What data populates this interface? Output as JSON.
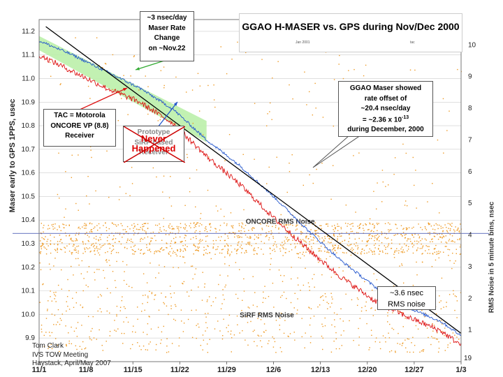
{
  "chart_data": {
    "type": "line",
    "title": "GGAO H-MASER vs. GPS during Nov/Dec 2000",
    "title_box_fineprint": [
      "Jan 2001",
      "tac"
    ],
    "xlabel": "",
    "ylabel": "Maser early to GPS 1PPS, usec",
    "y2label": "RMS Noise in 5 minute bins, nsec",
    "x_tick_labels": [
      "11/1",
      "11/8",
      "11/15",
      "11/22",
      "11/29",
      "12/6",
      "12/13",
      "12/20",
      "12/27",
      "1/3"
    ],
    "x_tick_days": [
      0,
      7,
      14,
      21,
      28,
      35,
      42,
      49,
      56,
      63
    ],
    "xlim": [
      0,
      63
    ],
    "ylim": [
      9.8,
      11.25
    ],
    "y_tick_values": [
      9.9,
      10.0,
      10.1,
      10.2,
      10.3,
      10.4,
      10.5,
      10.6,
      10.7,
      10.8,
      10.9,
      11.0,
      11.1,
      11.2
    ],
    "y_tick_labels": [
      "9.9",
      "10.0",
      "10.1",
      "10.2",
      "10.3",
      "10.4",
      "10.5",
      "10.6",
      "10.7",
      "10.8",
      "10.9",
      "11.0",
      "11.1",
      "11.2"
    ],
    "y2lim": [
      0,
      10.8
    ],
    "y2_tick_values": [
      1,
      2,
      3,
      4,
      5,
      6,
      7,
      8,
      9,
      10
    ],
    "y2_tick_labels": [
      "1",
      "2",
      "3",
      "4",
      "5",
      "6",
      "7",
      "8",
      "9",
      "10"
    ],
    "series": [
      {
        "name": "ONCORE VP (blue)",
        "color": "#2255cc",
        "x": [
          0,
          5,
          10,
          15,
          20,
          25,
          30,
          35,
          40,
          45,
          50,
          55,
          60,
          63
        ],
        "values": [
          11.16,
          11.1,
          11.03,
          10.96,
          10.87,
          10.74,
          10.63,
          10.5,
          10.36,
          10.23,
          10.12,
          10.03,
          9.97,
          9.91
        ]
      },
      {
        "name": "SiRF (red)",
        "color": "#dd1111",
        "x": [
          0,
          5,
          10,
          15,
          20,
          25,
          30,
          35,
          40,
          45,
          50,
          55,
          60,
          63
        ],
        "values": [
          11.1,
          11.03,
          10.96,
          10.9,
          10.81,
          10.67,
          10.55,
          10.41,
          10.28,
          10.16,
          10.06,
          9.99,
          9.93,
          9.87
        ]
      },
      {
        "name": "Predicted rate (black)",
        "color": "#000000",
        "x": [
          1,
          63
        ],
        "values": [
          11.22,
          9.92
        ]
      }
    ],
    "rate_band": {
      "name": "~3 nsec/day rate change",
      "color": "#bbf0aa",
      "x": [
        0,
        25
      ],
      "upper": [
        11.18,
        10.82
      ],
      "lower": [
        11.12,
        10.73
      ]
    },
    "rms_noise": [
      {
        "name": "ONCORE RMS Noise",
        "color": "#ee9922",
        "mean": 3.9,
        "band": [
          3.4,
          4.4
        ]
      },
      {
        "name": "SiRF RMS Noise",
        "color": "#ee9922",
        "mean": 1.2,
        "band": [
          0.3,
          2.2
        ]
      }
    ],
    "reference_line": {
      "value": 4.05,
      "color": "#3344aa"
    }
  },
  "annotations": {
    "maser_rate": [
      "~3 nsec/day",
      "Maser Rate",
      "Change",
      "on ~Nov.22"
    ],
    "ggao_offset": [
      "GGAO Maser showed",
      "rate offset of",
      "~20.4 nsec/day",
      "= ~2.36 x 10",
      "during December, 2000"
    ],
    "ggao_offset_exponent": "-13",
    "tac": [
      "TAC = Motorola",
      "ONCORE VP (8.8)",
      "Receiver"
    ],
    "sirf": [
      "Prototype",
      "SiRF-based",
      "Receiver"
    ],
    "sirf_never": [
      "Never",
      "Happened"
    ],
    "oncore_rms_label": "ONCORE RMS Noise",
    "sirf_rms_label": "SiRF RMS Noise",
    "rms_callout": [
      "~3.6 nsec",
      "RMS noise"
    ]
  },
  "footer": {
    "lines": [
      "Tom Clark",
      "IVS TOW Meeting",
      "Haystack, April/May 2007"
    ]
  },
  "page_number": "19",
  "colors": {
    "grid": "#cccccc",
    "frame": "#777777",
    "orange": "#ee9922",
    "red": "#dd1111",
    "blue": "#2255cc"
  }
}
